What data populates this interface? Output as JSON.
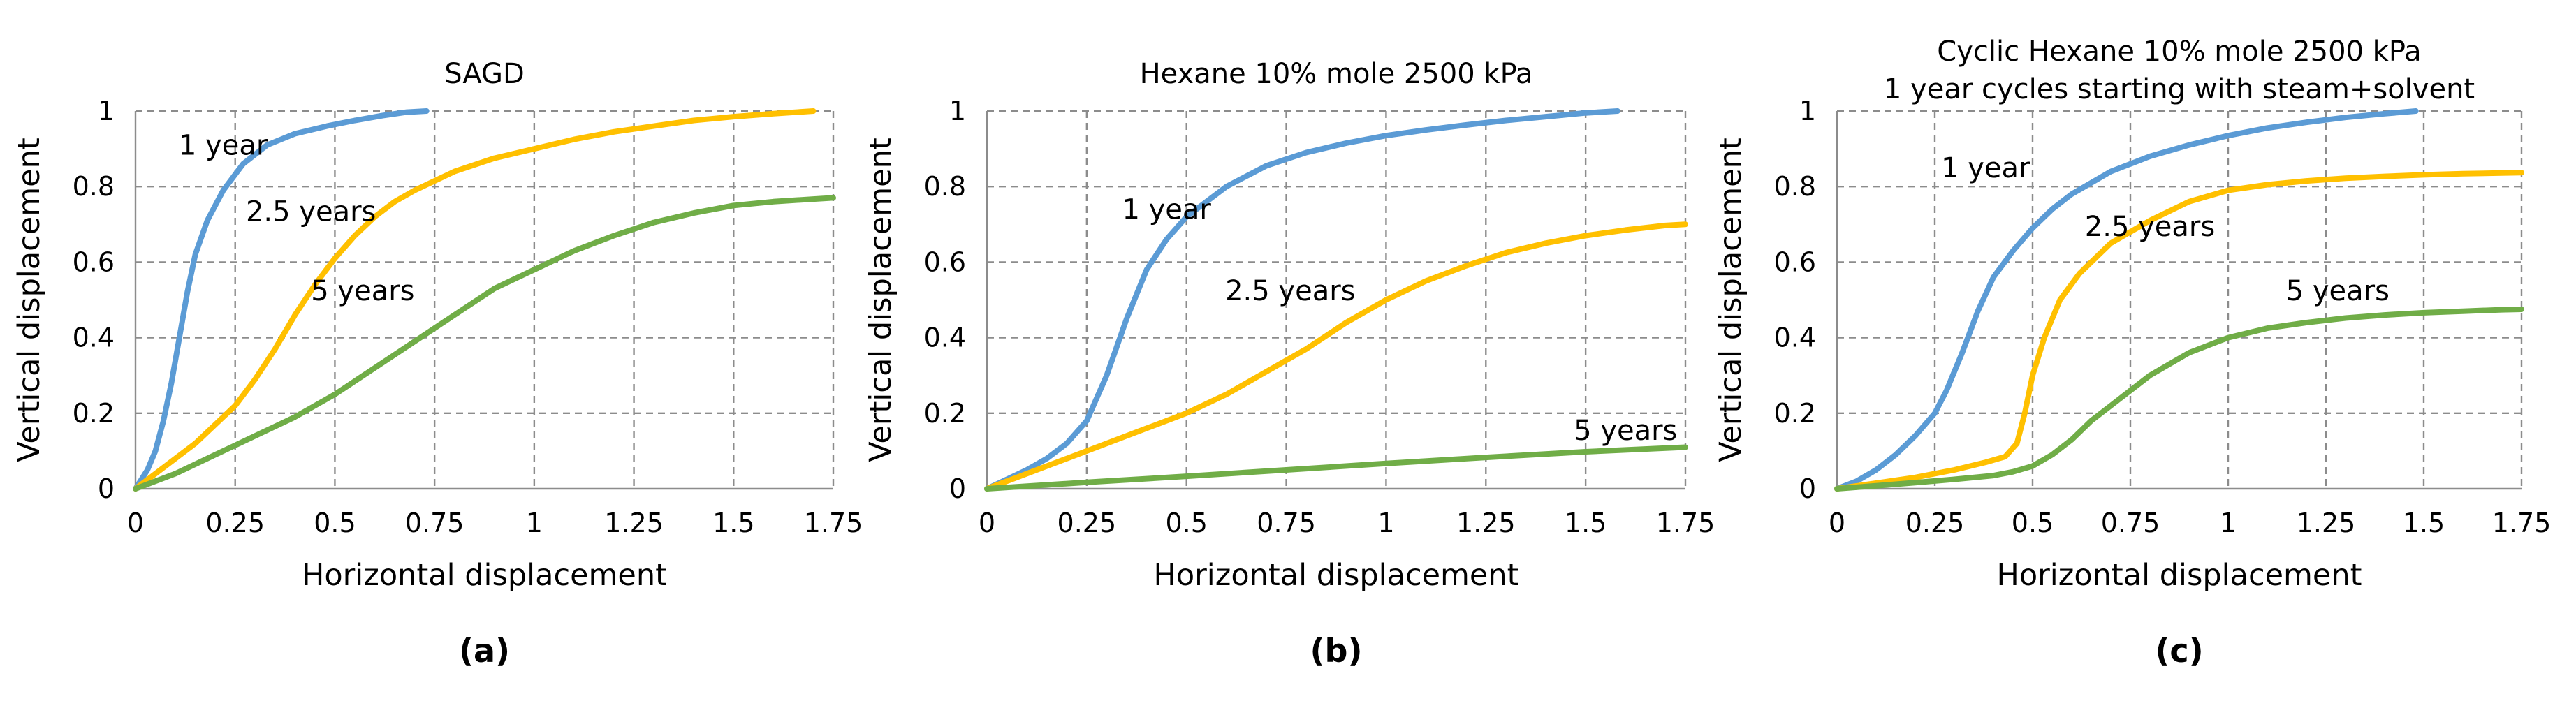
{
  "colors": {
    "one_year": "#5b9bd5",
    "two_half_years": "#ffc000",
    "five_years": "#70ad47"
  },
  "chart_data": [
    {
      "type": "line",
      "panel_label": "(a)",
      "title": [
        "SAGD"
      ],
      "xlabel": "Horizontal displacement",
      "ylabel": "Vertical displacement",
      "xlim": [
        0,
        1.75
      ],
      "ylim": [
        0,
        1
      ],
      "xticks": [
        0,
        0.25,
        0.5,
        0.75,
        1,
        1.25,
        1.5,
        1.75
      ],
      "xtick_labels": [
        "0",
        "0.25",
        "0.5",
        "0.75",
        "1",
        "1.25",
        "1.5",
        "1.75"
      ],
      "yticks": [
        0,
        0.2,
        0.4,
        0.6,
        0.8,
        1
      ],
      "ytick_labels": [
        "0",
        "0.2",
        "0.4",
        "0.6",
        "0.8",
        "1"
      ],
      "grid": true,
      "series": [
        {
          "name": "1 year",
          "color_key": "one_year",
          "label_at": [
            0.22,
            0.91
          ],
          "x": [
            0,
            0.03,
            0.05,
            0.07,
            0.09,
            0.11,
            0.13,
            0.15,
            0.18,
            0.22,
            0.27,
            0.33,
            0.4,
            0.48,
            0.55,
            0.62,
            0.68,
            0.73
          ],
          "y": [
            0,
            0.05,
            0.1,
            0.18,
            0.28,
            0.4,
            0.52,
            0.62,
            0.71,
            0.79,
            0.86,
            0.91,
            0.94,
            0.96,
            0.975,
            0.988,
            0.997,
            1.0
          ]
        },
        {
          "name": "2.5 years",
          "color_key": "two_half_years",
          "label_at": [
            0.44,
            0.735
          ],
          "x": [
            0,
            0.05,
            0.1,
            0.15,
            0.2,
            0.25,
            0.3,
            0.35,
            0.4,
            0.45,
            0.5,
            0.55,
            0.6,
            0.65,
            0.7,
            0.75,
            0.8,
            0.9,
            1.0,
            1.1,
            1.2,
            1.3,
            1.4,
            1.5,
            1.6,
            1.7
          ],
          "y": [
            0,
            0.04,
            0.08,
            0.12,
            0.17,
            0.22,
            0.29,
            0.37,
            0.46,
            0.54,
            0.61,
            0.67,
            0.72,
            0.76,
            0.79,
            0.815,
            0.84,
            0.875,
            0.9,
            0.925,
            0.945,
            0.96,
            0.975,
            0.985,
            0.993,
            1.0
          ]
        },
        {
          "name": "5 years",
          "color_key": "five_years",
          "label_at": [
            0.57,
            0.525
          ],
          "x": [
            0,
            0.1,
            0.2,
            0.3,
            0.4,
            0.5,
            0.6,
            0.7,
            0.8,
            0.9,
            1.0,
            1.1,
            1.2,
            1.3,
            1.4,
            1.5,
            1.6,
            1.7,
            1.75
          ],
          "y": [
            0,
            0.04,
            0.09,
            0.14,
            0.19,
            0.25,
            0.32,
            0.39,
            0.46,
            0.53,
            0.58,
            0.63,
            0.67,
            0.705,
            0.73,
            0.75,
            0.76,
            0.767,
            0.77
          ]
        }
      ]
    },
    {
      "type": "line",
      "panel_label": "(b)",
      "title": [
        "Hexane 10% mole 2500 kPa"
      ],
      "xlabel": "Horizontal displacement",
      "ylabel": "Vertical displacement",
      "xlim": [
        0,
        1.75
      ],
      "ylim": [
        0,
        1
      ],
      "xticks": [
        0,
        0.25,
        0.5,
        0.75,
        1,
        1.25,
        1.5,
        1.75
      ],
      "xtick_labels": [
        "0",
        "0.25",
        "0.5",
        "0.75",
        "1",
        "1.25",
        "1.5",
        "1.75"
      ],
      "yticks": [
        0,
        0.2,
        0.4,
        0.6,
        0.8,
        1
      ],
      "ytick_labels": [
        "0",
        "0.2",
        "0.4",
        "0.6",
        "0.8",
        "1"
      ],
      "grid": true,
      "series": [
        {
          "name": "1 year",
          "color_key": "one_year",
          "label_at": [
            0.45,
            0.74
          ],
          "x": [
            0,
            0.05,
            0.1,
            0.15,
            0.2,
            0.25,
            0.3,
            0.35,
            0.4,
            0.45,
            0.5,
            0.55,
            0.6,
            0.7,
            0.8,
            0.9,
            1.0,
            1.1,
            1.2,
            1.3,
            1.4,
            1.5,
            1.58
          ],
          "y": [
            0,
            0.025,
            0.05,
            0.08,
            0.12,
            0.18,
            0.3,
            0.45,
            0.58,
            0.66,
            0.72,
            0.76,
            0.8,
            0.855,
            0.89,
            0.915,
            0.935,
            0.95,
            0.963,
            0.975,
            0.985,
            0.995,
            1.0
          ]
        },
        {
          "name": "2.5 years",
          "color_key": "two_half_years",
          "label_at": [
            0.76,
            0.525
          ],
          "x": [
            0,
            0.1,
            0.2,
            0.3,
            0.4,
            0.5,
            0.6,
            0.7,
            0.8,
            0.9,
            1.0,
            1.1,
            1.2,
            1.3,
            1.4,
            1.5,
            1.6,
            1.7,
            1.75
          ],
          "y": [
            0,
            0.04,
            0.08,
            0.12,
            0.16,
            0.2,
            0.25,
            0.31,
            0.37,
            0.44,
            0.5,
            0.55,
            0.59,
            0.625,
            0.65,
            0.67,
            0.685,
            0.697,
            0.7
          ]
        },
        {
          "name": "5 years",
          "color_key": "five_years",
          "label_at": [
            1.6,
            0.155
          ],
          "x": [
            0,
            0.25,
            0.5,
            0.75,
            1.0,
            1.25,
            1.5,
            1.75
          ],
          "y": [
            0,
            0.017,
            0.033,
            0.05,
            0.067,
            0.083,
            0.098,
            0.11
          ]
        }
      ]
    },
    {
      "type": "line",
      "panel_label": "(c)",
      "title": [
        "Cyclic Hexane 10% mole 2500 kPa",
        "1 year cycles starting with steam+solvent"
      ],
      "xlabel": "Horizontal displacement",
      "ylabel": "Vertical displacement",
      "xlim": [
        0,
        1.75
      ],
      "ylim": [
        0,
        1
      ],
      "xticks": [
        0,
        0.25,
        0.5,
        0.75,
        1,
        1.25,
        1.5,
        1.75
      ],
      "xtick_labels": [
        "0",
        "0.25",
        "0.5",
        "0.75",
        "1",
        "1.25",
        "1.5",
        "1.75"
      ],
      "yticks": [
        0,
        0.2,
        0.4,
        0.6,
        0.8,
        1
      ],
      "ytick_labels": [
        "0",
        "0.2",
        "0.4",
        "0.6",
        "0.8",
        "1"
      ],
      "grid": true,
      "series": [
        {
          "name": "1 year",
          "color_key": "one_year",
          "label_at": [
            0.38,
            0.85
          ],
          "x": [
            0,
            0.05,
            0.1,
            0.15,
            0.2,
            0.25,
            0.28,
            0.32,
            0.36,
            0.4,
            0.45,
            0.5,
            0.55,
            0.6,
            0.7,
            0.8,
            0.9,
            1.0,
            1.1,
            1.2,
            1.3,
            1.4,
            1.48
          ],
          "y": [
            0,
            0.02,
            0.05,
            0.09,
            0.14,
            0.2,
            0.26,
            0.36,
            0.47,
            0.56,
            0.63,
            0.69,
            0.74,
            0.78,
            0.84,
            0.88,
            0.91,
            0.935,
            0.955,
            0.97,
            0.983,
            0.993,
            1.0
          ]
        },
        {
          "name": "2.5 years",
          "color_key": "two_half_years",
          "label_at": [
            0.8,
            0.695
          ],
          "x": [
            0,
            0.1,
            0.2,
            0.3,
            0.38,
            0.43,
            0.46,
            0.48,
            0.5,
            0.53,
            0.57,
            0.62,
            0.7,
            0.8,
            0.9,
            1.0,
            1.1,
            1.2,
            1.3,
            1.4,
            1.5,
            1.6,
            1.7,
            1.75
          ],
          "y": [
            0,
            0.015,
            0.03,
            0.05,
            0.07,
            0.085,
            0.12,
            0.2,
            0.3,
            0.4,
            0.5,
            0.57,
            0.65,
            0.71,
            0.76,
            0.79,
            0.805,
            0.815,
            0.822,
            0.827,
            0.831,
            0.834,
            0.836,
            0.837
          ]
        },
        {
          "name": "5 years",
          "color_key": "five_years",
          "label_at": [
            1.28,
            0.525
          ],
          "x": [
            0,
            0.1,
            0.2,
            0.3,
            0.4,
            0.45,
            0.5,
            0.55,
            0.6,
            0.65,
            0.7,
            0.75,
            0.8,
            0.9,
            1.0,
            1.1,
            1.2,
            1.3,
            1.4,
            1.5,
            1.6,
            1.7,
            1.75
          ],
          "y": [
            0,
            0.008,
            0.016,
            0.025,
            0.035,
            0.045,
            0.06,
            0.09,
            0.13,
            0.18,
            0.22,
            0.26,
            0.3,
            0.36,
            0.4,
            0.425,
            0.44,
            0.452,
            0.46,
            0.466,
            0.47,
            0.474,
            0.475
          ]
        }
      ]
    }
  ]
}
